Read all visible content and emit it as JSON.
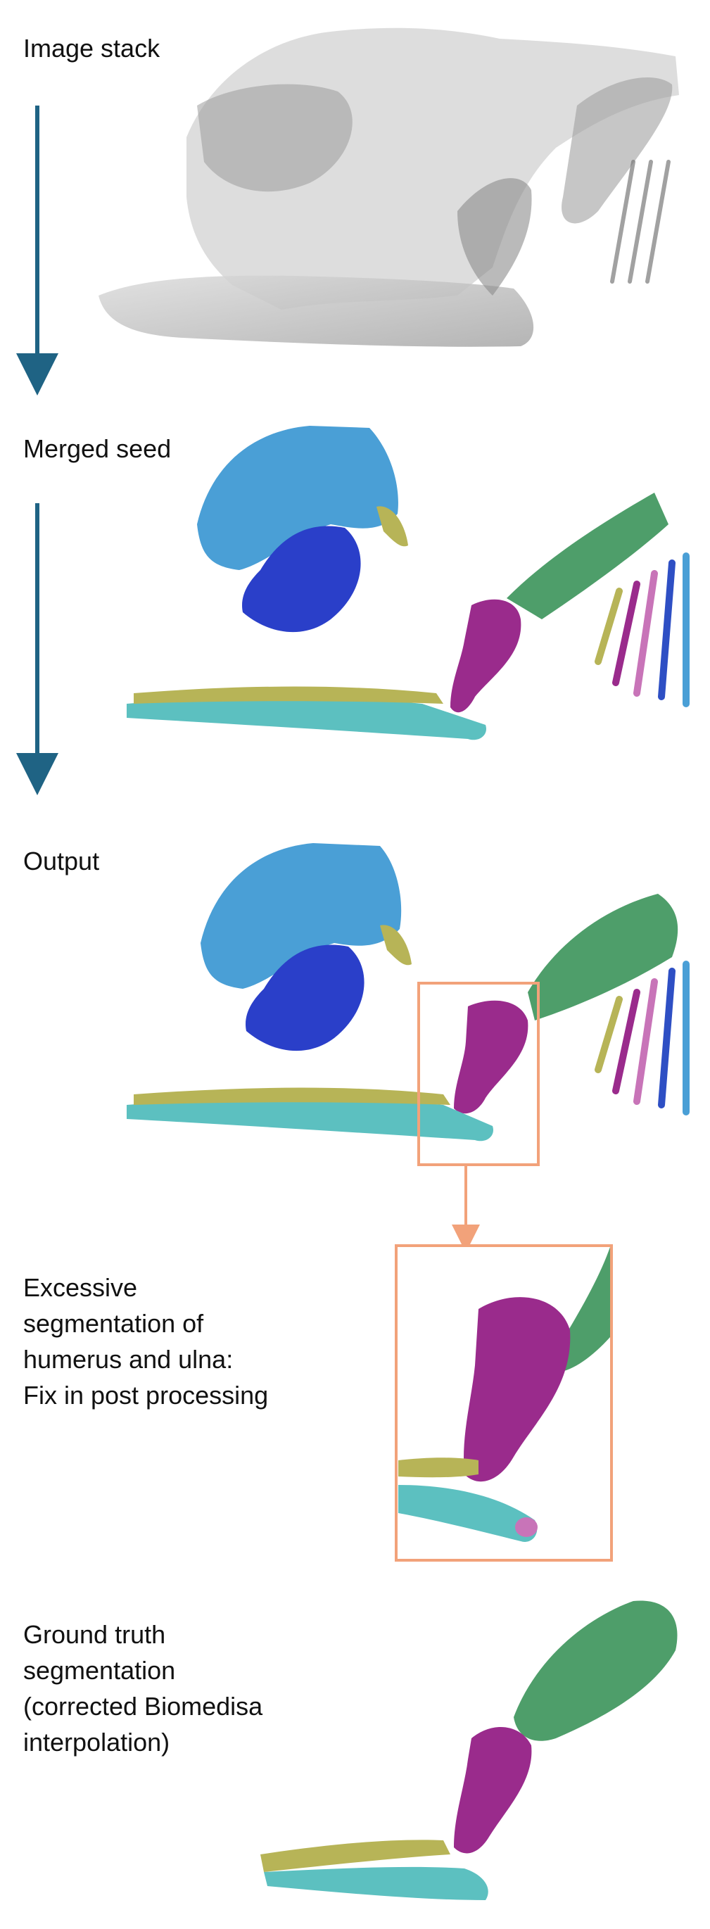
{
  "steps": [
    {
      "id": "image-stack",
      "label_lines": [
        "Image stack"
      ]
    },
    {
      "id": "merged-seed",
      "label_lines": [
        "Merged seed"
      ]
    },
    {
      "id": "output",
      "label_lines": [
        "Output"
      ]
    },
    {
      "id": "note",
      "label_lines": [
        "Excessive",
        "segmentation of",
        "humerus and ulna:",
        "Fix in post processing"
      ]
    },
    {
      "id": "ground-truth",
      "label_lines": [
        "Ground truth",
        "segmentation",
        "(corrected Biomedisa",
        "interpolation)"
      ]
    }
  ],
  "colors": {
    "arrow": "#1f6384",
    "highlight": "#f2a27a",
    "skull": "#4a9fd6",
    "mandible": "#2a3fc9",
    "humerus": "#9a2b8c",
    "ulna": "#5cc0c0",
    "radius": "#b7b457",
    "scapula": "#4e9e6a",
    "ribs_blue": "#2e4fc4",
    "ribs_pink": "#c874b8",
    "ribs_green": "#8fa84e",
    "xray": "#8a8a8a"
  }
}
